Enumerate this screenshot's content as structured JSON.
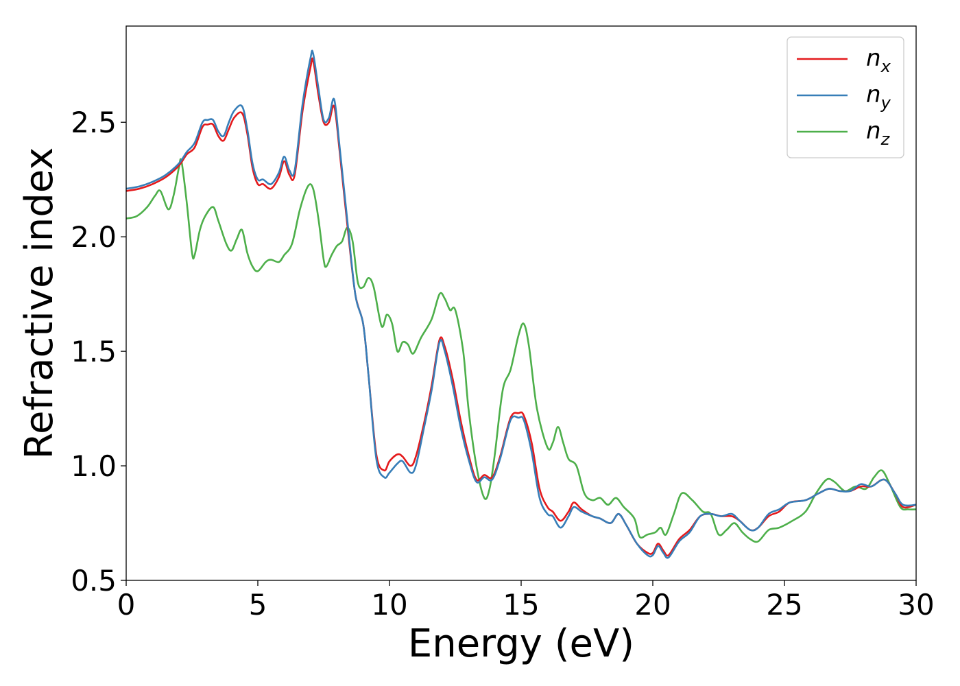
{
  "chart_data": {
    "type": "line",
    "title": "",
    "xlabel": "Energy (eV)",
    "ylabel": "Refractive index",
    "xlim": [
      0,
      30
    ],
    "ylim": [
      0.5,
      2.92
    ],
    "xticks": [
      0,
      5,
      10,
      15,
      20,
      25,
      30
    ],
    "yticks": [
      0.5,
      1.0,
      1.5,
      2.0,
      2.5
    ],
    "xtick_labels": [
      "0",
      "5",
      "10",
      "15",
      "20",
      "25",
      "30"
    ],
    "ytick_labels": [
      "0.5",
      "1.0",
      "1.5",
      "2.0",
      "2.5"
    ],
    "grid": false,
    "legend_position": "top-right",
    "series": [
      {
        "name": "n_x",
        "label_main": "n",
        "label_sub": "x",
        "color": "#e41a1c",
        "points": [
          [
            0,
            2.2
          ],
          [
            0.5,
            2.21
          ],
          [
            1,
            2.23
          ],
          [
            1.5,
            2.26
          ],
          [
            2,
            2.31
          ],
          [
            2.3,
            2.36
          ],
          [
            2.6,
            2.39
          ],
          [
            2.9,
            2.48
          ],
          [
            3.1,
            2.49
          ],
          [
            3.3,
            2.49
          ],
          [
            3.5,
            2.44
          ],
          [
            3.7,
            2.42
          ],
          [
            3.9,
            2.47
          ],
          [
            4.1,
            2.52
          ],
          [
            4.4,
            2.54
          ],
          [
            4.6,
            2.45
          ],
          [
            4.8,
            2.3
          ],
          [
            5.0,
            2.23
          ],
          [
            5.2,
            2.23
          ],
          [
            5.5,
            2.21
          ],
          [
            5.8,
            2.26
          ],
          [
            6.0,
            2.33
          ],
          [
            6.2,
            2.27
          ],
          [
            6.4,
            2.27
          ],
          [
            6.7,
            2.55
          ],
          [
            7.0,
            2.74
          ],
          [
            7.1,
            2.77
          ],
          [
            7.3,
            2.62
          ],
          [
            7.5,
            2.5
          ],
          [
            7.7,
            2.5
          ],
          [
            7.9,
            2.57
          ],
          [
            8.1,
            2.38
          ],
          [
            8.4,
            2.05
          ],
          [
            8.7,
            1.75
          ],
          [
            9.0,
            1.62
          ],
          [
            9.2,
            1.4
          ],
          [
            9.5,
            1.05
          ],
          [
            9.8,
            0.98
          ],
          [
            10.0,
            1.02
          ],
          [
            10.3,
            1.05
          ],
          [
            10.5,
            1.04
          ],
          [
            10.8,
            1.0
          ],
          [
            11.0,
            1.04
          ],
          [
            11.3,
            1.18
          ],
          [
            11.6,
            1.35
          ],
          [
            11.9,
            1.55
          ],
          [
            12.1,
            1.52
          ],
          [
            12.4,
            1.38
          ],
          [
            12.7,
            1.2
          ],
          [
            13.0,
            1.05
          ],
          [
            13.3,
            0.94
          ],
          [
            13.6,
            0.96
          ],
          [
            13.9,
            0.95
          ],
          [
            14.2,
            1.04
          ],
          [
            14.6,
            1.21
          ],
          [
            14.9,
            1.23
          ],
          [
            15.1,
            1.22
          ],
          [
            15.4,
            1.1
          ],
          [
            15.7,
            0.9
          ],
          [
            16.0,
            0.82
          ],
          [
            16.2,
            0.8
          ],
          [
            16.5,
            0.76
          ],
          [
            16.8,
            0.8
          ],
          [
            17.0,
            0.84
          ],
          [
            17.3,
            0.81
          ],
          [
            17.7,
            0.78
          ],
          [
            18.0,
            0.77
          ],
          [
            18.4,
            0.75
          ],
          [
            18.7,
            0.79
          ],
          [
            19.0,
            0.74
          ],
          [
            19.4,
            0.66
          ],
          [
            19.8,
            0.62
          ],
          [
            20.0,
            0.62
          ],
          [
            20.2,
            0.66
          ],
          [
            20.4,
            0.63
          ],
          [
            20.6,
            0.61
          ],
          [
            21.0,
            0.68
          ],
          [
            21.4,
            0.72
          ],
          [
            21.8,
            0.78
          ],
          [
            22.2,
            0.79
          ],
          [
            22.6,
            0.78
          ],
          [
            23.0,
            0.78
          ],
          [
            23.3,
            0.76
          ],
          [
            23.7,
            0.72
          ],
          [
            24.0,
            0.73
          ],
          [
            24.4,
            0.78
          ],
          [
            24.8,
            0.8
          ],
          [
            25.2,
            0.84
          ],
          [
            25.8,
            0.85
          ],
          [
            26.3,
            0.88
          ],
          [
            26.7,
            0.9
          ],
          [
            27.1,
            0.89
          ],
          [
            27.5,
            0.89
          ],
          [
            27.9,
            0.91
          ],
          [
            28.3,
            0.91
          ],
          [
            28.8,
            0.94
          ],
          [
            29.2,
            0.88
          ],
          [
            29.5,
            0.82
          ],
          [
            30,
            0.83
          ]
        ]
      },
      {
        "name": "n_y",
        "label_main": "n",
        "label_sub": "y",
        "color": "#377eb8",
        "points": [
          [
            0,
            2.21
          ],
          [
            0.5,
            2.22
          ],
          [
            1,
            2.24
          ],
          [
            1.5,
            2.27
          ],
          [
            2,
            2.32
          ],
          [
            2.3,
            2.37
          ],
          [
            2.6,
            2.41
          ],
          [
            2.9,
            2.5
          ],
          [
            3.1,
            2.51
          ],
          [
            3.3,
            2.51
          ],
          [
            3.5,
            2.46
          ],
          [
            3.7,
            2.44
          ],
          [
            3.9,
            2.5
          ],
          [
            4.1,
            2.55
          ],
          [
            4.4,
            2.57
          ],
          [
            4.6,
            2.47
          ],
          [
            4.8,
            2.32
          ],
          [
            5.0,
            2.25
          ],
          [
            5.2,
            2.25
          ],
          [
            5.5,
            2.23
          ],
          [
            5.8,
            2.28
          ],
          [
            6.0,
            2.35
          ],
          [
            6.2,
            2.29
          ],
          [
            6.4,
            2.29
          ],
          [
            6.7,
            2.58
          ],
          [
            7.0,
            2.78
          ],
          [
            7.1,
            2.8
          ],
          [
            7.3,
            2.65
          ],
          [
            7.5,
            2.51
          ],
          [
            7.7,
            2.52
          ],
          [
            7.9,
            2.6
          ],
          [
            8.1,
            2.4
          ],
          [
            8.4,
            2.07
          ],
          [
            8.7,
            1.75
          ],
          [
            9.0,
            1.62
          ],
          [
            9.2,
            1.4
          ],
          [
            9.5,
            1.03
          ],
          [
            9.8,
            0.95
          ],
          [
            10.0,
            0.97
          ],
          [
            10.3,
            1.01
          ],
          [
            10.5,
            1.02
          ],
          [
            10.8,
            0.97
          ],
          [
            11.0,
            1.0
          ],
          [
            11.3,
            1.16
          ],
          [
            11.6,
            1.33
          ],
          [
            11.9,
            1.54
          ],
          [
            12.1,
            1.5
          ],
          [
            12.4,
            1.35
          ],
          [
            12.7,
            1.17
          ],
          [
            13.0,
            1.03
          ],
          [
            13.3,
            0.93
          ],
          [
            13.6,
            0.95
          ],
          [
            13.9,
            0.94
          ],
          [
            14.2,
            1.03
          ],
          [
            14.6,
            1.2
          ],
          [
            14.9,
            1.21
          ],
          [
            15.1,
            1.2
          ],
          [
            15.4,
            1.06
          ],
          [
            15.7,
            0.86
          ],
          [
            16.0,
            0.79
          ],
          [
            16.2,
            0.78
          ],
          [
            16.5,
            0.73
          ],
          [
            16.8,
            0.78
          ],
          [
            17.0,
            0.82
          ],
          [
            17.3,
            0.8
          ],
          [
            17.7,
            0.78
          ],
          [
            18.0,
            0.77
          ],
          [
            18.4,
            0.75
          ],
          [
            18.7,
            0.79
          ],
          [
            19.0,
            0.74
          ],
          [
            19.4,
            0.66
          ],
          [
            19.8,
            0.61
          ],
          [
            20.0,
            0.61
          ],
          [
            20.2,
            0.65
          ],
          [
            20.4,
            0.62
          ],
          [
            20.6,
            0.6
          ],
          [
            21.0,
            0.67
          ],
          [
            21.4,
            0.71
          ],
          [
            21.8,
            0.78
          ],
          [
            22.2,
            0.79
          ],
          [
            22.6,
            0.78
          ],
          [
            23.0,
            0.79
          ],
          [
            23.3,
            0.76
          ],
          [
            23.7,
            0.72
          ],
          [
            24.0,
            0.73
          ],
          [
            24.4,
            0.79
          ],
          [
            24.8,
            0.81
          ],
          [
            25.2,
            0.84
          ],
          [
            25.8,
            0.85
          ],
          [
            26.3,
            0.88
          ],
          [
            26.7,
            0.9
          ],
          [
            27.1,
            0.89
          ],
          [
            27.5,
            0.89
          ],
          [
            27.9,
            0.92
          ],
          [
            28.3,
            0.91
          ],
          [
            28.8,
            0.94
          ],
          [
            29.2,
            0.88
          ],
          [
            29.5,
            0.83
          ],
          [
            30,
            0.83
          ]
        ]
      },
      {
        "name": "n_z",
        "label_main": "n",
        "label_sub": "z",
        "color": "#4daf4a",
        "points": [
          [
            0,
            2.08
          ],
          [
            0.4,
            2.09
          ],
          [
            0.8,
            2.13
          ],
          [
            1.1,
            2.18
          ],
          [
            1.3,
            2.2
          ],
          [
            1.6,
            2.12
          ],
          [
            1.8,
            2.18
          ],
          [
            2.0,
            2.3
          ],
          [
            2.1,
            2.33
          ],
          [
            2.3,
            2.15
          ],
          [
            2.5,
            1.93
          ],
          [
            2.6,
            1.92
          ],
          [
            2.8,
            2.03
          ],
          [
            3.0,
            2.09
          ],
          [
            3.3,
            2.13
          ],
          [
            3.5,
            2.07
          ],
          [
            3.8,
            1.97
          ],
          [
            4.0,
            1.94
          ],
          [
            4.2,
            1.99
          ],
          [
            4.4,
            2.03
          ],
          [
            4.6,
            1.93
          ],
          [
            4.8,
            1.87
          ],
          [
            5.0,
            1.85
          ],
          [
            5.3,
            1.89
          ],
          [
            5.5,
            1.9
          ],
          [
            5.8,
            1.89
          ],
          [
            6.0,
            1.92
          ],
          [
            6.3,
            1.97
          ],
          [
            6.6,
            2.12
          ],
          [
            6.9,
            2.22
          ],
          [
            7.1,
            2.21
          ],
          [
            7.3,
            2.08
          ],
          [
            7.5,
            1.9
          ],
          [
            7.6,
            1.87
          ],
          [
            7.8,
            1.92
          ],
          [
            8.0,
            1.96
          ],
          [
            8.2,
            1.98
          ],
          [
            8.4,
            2.04
          ],
          [
            8.6,
            1.98
          ],
          [
            8.8,
            1.8
          ],
          [
            9.0,
            1.78
          ],
          [
            9.2,
            1.82
          ],
          [
            9.4,
            1.78
          ],
          [
            9.7,
            1.61
          ],
          [
            9.9,
            1.66
          ],
          [
            10.1,
            1.62
          ],
          [
            10.3,
            1.5
          ],
          [
            10.5,
            1.54
          ],
          [
            10.7,
            1.53
          ],
          [
            10.9,
            1.49
          ],
          [
            11.2,
            1.56
          ],
          [
            11.6,
            1.64
          ],
          [
            11.9,
            1.75
          ],
          [
            12.1,
            1.73
          ],
          [
            12.3,
            1.68
          ],
          [
            12.5,
            1.68
          ],
          [
            12.8,
            1.5
          ],
          [
            13.0,
            1.25
          ],
          [
            13.3,
            1.0
          ],
          [
            13.6,
            0.86
          ],
          [
            13.8,
            0.9
          ],
          [
            14.0,
            1.05
          ],
          [
            14.3,
            1.33
          ],
          [
            14.6,
            1.42
          ],
          [
            14.9,
            1.57
          ],
          [
            15.1,
            1.62
          ],
          [
            15.3,
            1.52
          ],
          [
            15.6,
            1.25
          ],
          [
            16.0,
            1.08
          ],
          [
            16.2,
            1.1
          ],
          [
            16.4,
            1.17
          ],
          [
            16.6,
            1.1
          ],
          [
            16.8,
            1.03
          ],
          [
            17.1,
            1.0
          ],
          [
            17.4,
            0.88
          ],
          [
            17.7,
            0.85
          ],
          [
            18.0,
            0.86
          ],
          [
            18.3,
            0.83
          ],
          [
            18.6,
            0.86
          ],
          [
            18.9,
            0.82
          ],
          [
            19.3,
            0.77
          ],
          [
            19.5,
            0.69
          ],
          [
            19.8,
            0.7
          ],
          [
            20.1,
            0.71
          ],
          [
            20.3,
            0.73
          ],
          [
            20.5,
            0.7
          ],
          [
            20.8,
            0.79
          ],
          [
            21.1,
            0.88
          ],
          [
            21.5,
            0.85
          ],
          [
            21.9,
            0.8
          ],
          [
            22.2,
            0.79
          ],
          [
            22.5,
            0.7
          ],
          [
            22.8,
            0.72
          ],
          [
            23.1,
            0.75
          ],
          [
            23.4,
            0.71
          ],
          [
            23.7,
            0.68
          ],
          [
            24.0,
            0.67
          ],
          [
            24.4,
            0.72
          ],
          [
            24.8,
            0.73
          ],
          [
            25.3,
            0.76
          ],
          [
            25.8,
            0.8
          ],
          [
            26.2,
            0.88
          ],
          [
            26.6,
            0.94
          ],
          [
            26.9,
            0.93
          ],
          [
            27.3,
            0.89
          ],
          [
            27.7,
            0.91
          ],
          [
            28.1,
            0.9
          ],
          [
            28.4,
            0.95
          ],
          [
            28.7,
            0.98
          ],
          [
            29.0,
            0.92
          ],
          [
            29.4,
            0.82
          ],
          [
            29.7,
            0.81
          ],
          [
            30,
            0.81
          ]
        ]
      }
    ]
  }
}
